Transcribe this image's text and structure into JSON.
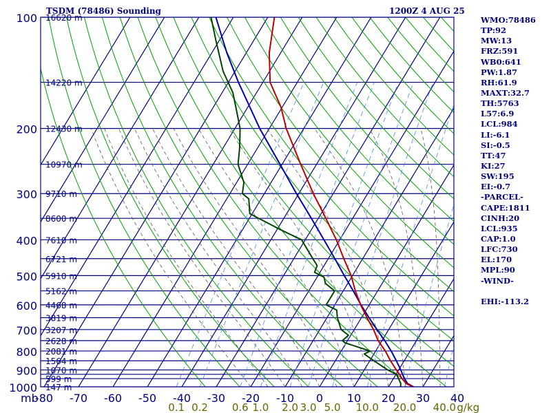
{
  "title_left": "TSDM (78486) Sounding",
  "title_right": "1200Z  4 AUG 25",
  "indices": [
    "WMO:78486",
    "TP:92",
    "MW:13",
    "FRZ:591",
    "WB0:641",
    "PW:1.87",
    "RH:61.9",
    "MAXT:32.7",
    "TH:5763",
    "L57:6.9",
    "LCL:984",
    "LI:-6.1",
    "SI:-0.5",
    "TT:47",
    "KI:27",
    "SW:195",
    "EI:-0.7",
    "-PARCEL-",
    "CAPE:1811",
    "CINH:20",
    "LCL:935",
    "CAP:1.0",
    "LFC:730",
    "EL:170",
    "MPL:90",
    "-WIND-",
    "",
    "EHI:-113.2"
  ],
  "colors": {
    "grid": "#00007f",
    "temperature": "#c00000",
    "dewpoint": "#004400",
    "parcel": "#0000aa",
    "dry_adiabat": "#00a000",
    "moist_adiabat": "#555555",
    "mixing_ratio": "#4488ff",
    "mixing_ratio_labels": "#666600"
  },
  "chart_data": {
    "type": "skew-t",
    "pressure_axis_label": "mb",
    "pressure_ticks": [
      100,
      200,
      300,
      400,
      500,
      600,
      700,
      800,
      900,
      1000
    ],
    "pressure_lines": [
      100,
      150,
      200,
      250,
      300,
      350,
      400,
      450,
      500,
      550,
      600,
      650,
      700,
      750,
      800,
      850,
      900,
      925,
      950,
      1000
    ],
    "height_labels": [
      {
        "p": 100,
        "label": "16620 m"
      },
      {
        "p": 150,
        "label": "14220 m"
      },
      {
        "p": 200,
        "label": "12430 m"
      },
      {
        "p": 250,
        "label": "10970 m"
      },
      {
        "p": 300,
        "label": "9710 m"
      },
      {
        "p": 350,
        "label": "8600 m"
      },
      {
        "p": 400,
        "label": "7610 m"
      },
      {
        "p": 450,
        "label": "6721 m"
      },
      {
        "p": 500,
        "label": "5910 m"
      },
      {
        "p": 550,
        "label": "5162 m"
      },
      {
        "p": 600,
        "label": "4468 m"
      },
      {
        "p": 650,
        "label": "3819 m"
      },
      {
        "p": 700,
        "label": "3207 m"
      },
      {
        "p": 750,
        "label": "2628 m"
      },
      {
        "p": 800,
        "label": "2081 m"
      },
      {
        "p": 850,
        "label": "1564 m"
      },
      {
        "p": 900,
        "label": "1070 m"
      },
      {
        "p": 950,
        "label": "599 m"
      },
      {
        "p": 1000,
        "label": "147 m"
      }
    ],
    "temperature_ticks": [
      -80,
      -70,
      -60,
      -50,
      -40,
      -30,
      -20,
      -10,
      0,
      10,
      20,
      30,
      40
    ],
    "temperature_tick_labels": [
      "-80",
      "-70",
      "-60",
      "-50",
      "-40",
      "-30",
      "-20",
      "-10",
      "0",
      "10",
      "20",
      "30",
      "40"
    ],
    "mixing_ratio_values": [
      0.1,
      0.2,
      0.6,
      1.0,
      2.0,
      3.0,
      5.0,
      10.0,
      20.0,
      40.0
    ],
    "mixing_ratio_labels": [
      "0.1",
      "0.2",
      "0.6",
      "1.0",
      "2.0",
      "3.0",
      "5.0",
      "10.0",
      "20.0",
      "40.0"
    ],
    "mixing_ratio_unit": "g/kg",
    "temperature_profile": [
      {
        "p": 1003,
        "t": 27.5
      },
      {
        "p": 980,
        "t": 24.6
      },
      {
        "p": 950,
        "t": 22.5
      },
      {
        "p": 925,
        "t": 21.0
      },
      {
        "p": 900,
        "t": 19.3
      },
      {
        "p": 850,
        "t": 16.0
      },
      {
        "p": 800,
        "t": 12.8
      },
      {
        "p": 750,
        "t": 8.9
      },
      {
        "p": 700,
        "t": 5.6
      },
      {
        "p": 650,
        "t": 1.6
      },
      {
        "p": 600,
        "t": -2.5
      },
      {
        "p": 550,
        "t": -6.5
      },
      {
        "p": 500,
        "t": -10.4
      },
      {
        "p": 450,
        "t": -15.5
      },
      {
        "p": 400,
        "t": -21.0
      },
      {
        "p": 350,
        "t": -27.8
      },
      {
        "p": 300,
        "t": -35.8
      },
      {
        "p": 250,
        "t": -44.6
      },
      {
        "p": 200,
        "t": -55.1
      },
      {
        "p": 175,
        "t": -60.4
      },
      {
        "p": 150,
        "t": -67.9
      },
      {
        "p": 125,
        "t": -73.3
      },
      {
        "p": 100,
        "t": -78.1
      }
    ],
    "dewpoint_profile": [
      {
        "p": 1003,
        "t": 23.6
      },
      {
        "p": 980,
        "t": 23.0
      },
      {
        "p": 950,
        "t": 21.5
      },
      {
        "p": 925,
        "t": 20.1
      },
      {
        "p": 900,
        "t": 16.8
      },
      {
        "p": 850,
        "t": 11.2
      },
      {
        "p": 815,
        "t": 7.2
      },
      {
        "p": 800,
        "t": 8.4
      },
      {
        "p": 760,
        "t": -0.4
      },
      {
        "p": 750,
        "t": -1.5
      },
      {
        "p": 725,
        "t": -0.7
      },
      {
        "p": 700,
        "t": -3.8
      },
      {
        "p": 650,
        "t": -7.0
      },
      {
        "p": 620,
        "t": -8.5
      },
      {
        "p": 600,
        "t": -12.5
      },
      {
        "p": 550,
        "t": -12.5
      },
      {
        "p": 525,
        "t": -16.5
      },
      {
        "p": 505,
        "t": -18.0
      },
      {
        "p": 490,
        "t": -21.6
      },
      {
        "p": 470,
        "t": -22.0
      },
      {
        "p": 450,
        "t": -24.5
      },
      {
        "p": 400,
        "t": -31.1
      },
      {
        "p": 375,
        "t": -39.2
      },
      {
        "p": 350,
        "t": -47.3
      },
      {
        "p": 340,
        "t": -50.7
      },
      {
        "p": 310,
        "t": -53.6
      },
      {
        "p": 300,
        "t": -56.4
      },
      {
        "p": 280,
        "t": -57.9
      },
      {
        "p": 250,
        "t": -62.8
      },
      {
        "p": 225,
        "t": -65.3
      },
      {
        "p": 200,
        "t": -68.5
      },
      {
        "p": 175,
        "t": -73.5
      },
      {
        "p": 160,
        "t": -76.9
      },
      {
        "p": 140,
        "t": -83.5
      },
      {
        "p": 115,
        "t": -91.2
      },
      {
        "p": 100,
        "t": -96.5
      }
    ],
    "parcel_profile": [
      {
        "p": 1000,
        "t": 27.3
      },
      {
        "p": 980,
        "t": 25.0
      },
      {
        "p": 950,
        "t": 23.2
      },
      {
        "p": 935,
        "t": 22.4
      },
      {
        "p": 900,
        "t": 20.6
      },
      {
        "p": 850,
        "t": 17.7
      },
      {
        "p": 800,
        "t": 14.5
      },
      {
        "p": 750,
        "t": 10.8
      },
      {
        "p": 700,
        "t": 6.6
      },
      {
        "p": 650,
        "t": 2.2
      },
      {
        "p": 600,
        "t": -2.4
      },
      {
        "p": 550,
        "t": -7.1
      },
      {
        "p": 500,
        "t": -12.4
      },
      {
        "p": 450,
        "t": -18.1
      },
      {
        "p": 400,
        "t": -24.6
      },
      {
        "p": 350,
        "t": -32.0
      },
      {
        "p": 300,
        "t": -40.7
      },
      {
        "p": 250,
        "t": -50.6
      },
      {
        "p": 200,
        "t": -62.8
      },
      {
        "p": 150,
        "t": -77.1
      },
      {
        "p": 125,
        "t": -85.6
      },
      {
        "p": 100,
        "t": -95.1
      }
    ]
  }
}
